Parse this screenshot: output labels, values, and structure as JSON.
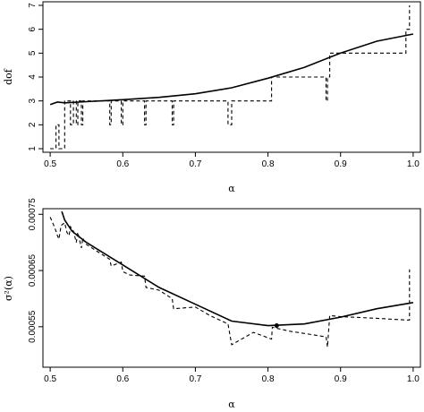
{
  "chart_data": [
    {
      "type": "line",
      "xlabel": "α",
      "ylabel": "dof",
      "xlim": [
        0.49,
        1.01
      ],
      "ylim": [
        0.85,
        7.15
      ],
      "xticks": [
        "0.5",
        "0.6",
        "0.7",
        "0.8",
        "0.9",
        "1.0"
      ],
      "yticks": [
        "1",
        "2",
        "3",
        "4",
        "5",
        "6",
        "7"
      ],
      "grid": false,
      "series": [
        {
          "style": "solid",
          "x": [
            0.5,
            0.51,
            0.52,
            0.55,
            0.6,
            0.65,
            0.7,
            0.75,
            0.8,
            0.85,
            0.9,
            0.95,
            1.0
          ],
          "y": [
            2.85,
            2.95,
            2.92,
            2.97,
            3.05,
            3.15,
            3.3,
            3.55,
            3.95,
            4.4,
            5.0,
            5.5,
            5.8
          ]
        },
        {
          "style": "dashed",
          "x": [
            0.5,
            0.508,
            0.508,
            0.512,
            0.512,
            0.52,
            0.52,
            0.528,
            0.528,
            0.532,
            0.532,
            0.536,
            0.536,
            0.538,
            0.538,
            0.543,
            0.543,
            0.545,
            0.545,
            0.548,
            0.548,
            0.582,
            0.582,
            0.584,
            0.584,
            0.598,
            0.598,
            0.6,
            0.6,
            0.63,
            0.63,
            0.632,
            0.632,
            0.668,
            0.668,
            0.67,
            0.67,
            0.745,
            0.745,
            0.75,
            0.75,
            0.805,
            0.805,
            0.88,
            0.88,
            0.882,
            0.882,
            0.885,
            0.885,
            0.99,
            0.99,
            0.995,
            0.995
          ],
          "y": [
            1,
            1,
            2,
            2,
            1,
            1,
            3,
            3,
            2,
            2,
            3,
            3,
            2,
            2,
            3,
            3,
            2,
            2,
            3,
            3,
            3,
            3,
            2,
            2,
            3,
            3,
            2,
            2,
            3,
            3,
            2,
            2,
            3,
            3,
            2,
            2,
            3,
            3,
            2,
            2,
            3,
            3,
            4,
            4,
            3,
            3,
            4,
            4,
            5,
            5,
            6,
            6,
            7
          ]
        }
      ]
    },
    {
      "type": "line",
      "xlabel": "α",
      "ylabel": "σ²(α)",
      "xlim": [
        0.49,
        1.01
      ],
      "ylim": [
        0.000478,
        0.00076
      ],
      "xticks": [
        "0.5",
        "0.6",
        "0.7",
        "0.8",
        "0.9",
        "1.0"
      ],
      "yticks": [
        "0.00055",
        "0.00065",
        "0.00075"
      ],
      "grid": false,
      "marker": {
        "x": 0.812,
        "y": 0.000552
      },
      "series": [
        {
          "style": "solid",
          "x": [
            0.516,
            0.52,
            0.53,
            0.55,
            0.6,
            0.65,
            0.7,
            0.75,
            0.8,
            0.85,
            0.9,
            0.95,
            1.0
          ],
          "y": [
            0.000755,
            0.00074,
            0.00072,
            0.0007,
            0.00066,
            0.00062,
            0.00059,
            0.00056,
            0.000552,
            0.000555,
            0.000567,
            0.000582,
            0.000593
          ]
        },
        {
          "style": "dashed",
          "x": [
            0.5,
            0.505,
            0.508,
            0.51,
            0.512,
            0.515,
            0.52,
            0.523,
            0.526,
            0.528,
            0.532,
            0.536,
            0.538,
            0.543,
            0.545,
            0.548,
            0.56,
            0.582,
            0.584,
            0.598,
            0.6,
            0.61,
            0.63,
            0.632,
            0.65,
            0.668,
            0.67,
            0.7,
            0.72,
            0.745,
            0.75,
            0.78,
            0.805,
            0.806,
            0.83,
            0.85,
            0.88,
            0.882,
            0.885,
            0.9,
            0.95,
            0.99,
            0.995,
            0.995
          ],
          "y": [
            0.000745,
            0.00073,
            0.00072,
            0.000712,
            0.000706,
            0.00073,
            0.000735,
            0.000718,
            0.000712,
            0.000728,
            0.00072,
            0.0007,
            0.000718,
            0.00069,
            0.000708,
            0.000698,
            0.000688,
            0.00067,
            0.000658,
            0.000665,
            0.000648,
            0.000642,
            0.00064,
            0.00062,
            0.000615,
            0.0006,
            0.000582,
            0.000585,
            0.00057,
            0.000555,
            0.000518,
            0.00054,
            0.000528,
            0.000549,
            0.000542,
            0.000538,
            0.000532,
            0.000514,
            0.00057,
            0.000568,
            0.000565,
            0.000562,
            0.000562,
            0.000652
          ]
        }
      ]
    }
  ]
}
